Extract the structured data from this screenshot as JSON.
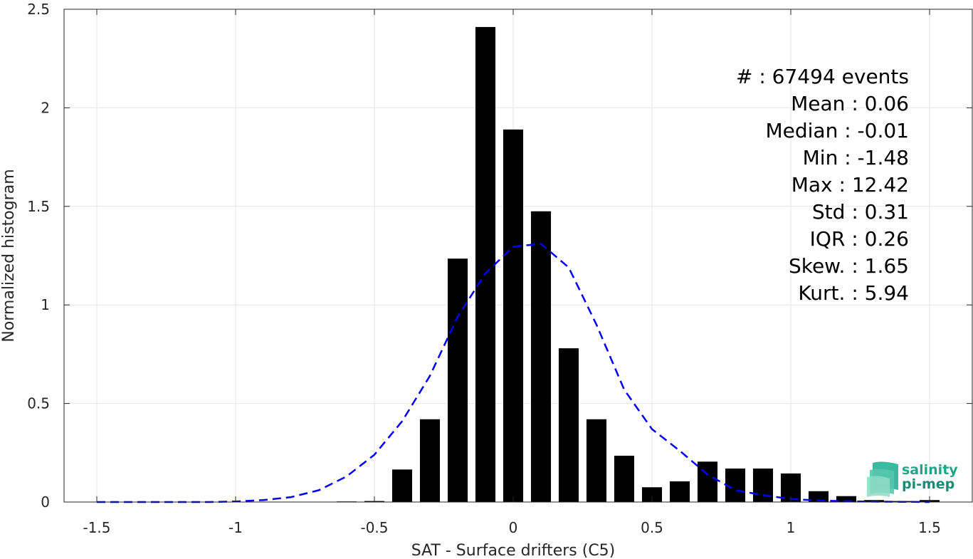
{
  "chart_data": {
    "type": "bar",
    "xlabel": "SAT - Surface drifters (C5)",
    "ylabel": "Normalized histogram",
    "xlim": [
      -1.6,
      1.6
    ],
    "ylim": [
      0,
      2.5
    ],
    "grid": true,
    "x_ticks": [
      "-1.5",
      "-1",
      "-0.5",
      "0",
      "0.5",
      "1",
      "1.5"
    ],
    "y_ticks": [
      "0",
      "0.5",
      "1",
      "1.5",
      "2",
      "2.5"
    ],
    "bar_color": "#000000",
    "fit_color": "#0000ff",
    "histogram": {
      "x": [
        -0.6,
        -0.5,
        -0.4,
        -0.3,
        -0.2,
        -0.1,
        0.0,
        0.1,
        0.2,
        0.3,
        0.4,
        0.5,
        0.6,
        0.7,
        0.8,
        0.9,
        1.0,
        1.1,
        1.2,
        1.3,
        1.4,
        1.5
      ],
      "values": [
        0.003,
        0.005,
        0.165,
        0.42,
        1.235,
        2.41,
        1.89,
        1.475,
        0.78,
        0.42,
        0.235,
        0.075,
        0.105,
        0.205,
        0.17,
        0.17,
        0.145,
        0.055,
        0.03,
        0.01,
        0.005,
        0.01
      ]
    },
    "fit_curve": {
      "style": "dashed",
      "x": [
        -1.5,
        -1.4,
        -1.3,
        -1.2,
        -1.1,
        -1.0,
        -0.9,
        -0.8,
        -0.7,
        -0.6,
        -0.5,
        -0.4,
        -0.3,
        -0.2,
        -0.1,
        0.0,
        0.1,
        0.2,
        0.3,
        0.4,
        0.5,
        0.6,
        0.7,
        0.8,
        0.9,
        1.0,
        1.1,
        1.2,
        1.3,
        1.4,
        1.5
      ],
      "y": [
        0.0,
        0.0,
        0.0,
        0.0,
        0.0,
        0.003,
        0.01,
        0.025,
        0.06,
        0.13,
        0.24,
        0.41,
        0.64,
        0.94,
        1.16,
        1.295,
        1.31,
        1.19,
        0.9,
        0.57,
        0.37,
        0.26,
        0.14,
        0.06,
        0.035,
        0.015,
        0.008,
        0.004,
        0.002,
        0.001,
        0.0
      ]
    },
    "annotations": [
      "#  : 67494 events",
      "Mean : 0.06",
      "Median : -0.01",
      "Min : -1.48",
      "Max : 12.42",
      "Std : 0.31",
      "IQR : 0.26",
      "Skew. : 1.65",
      "Kurt. : 5.94"
    ]
  },
  "logo": {
    "line1": "salinity",
    "line2": "pi-mep",
    "color": "#1fa58a"
  }
}
